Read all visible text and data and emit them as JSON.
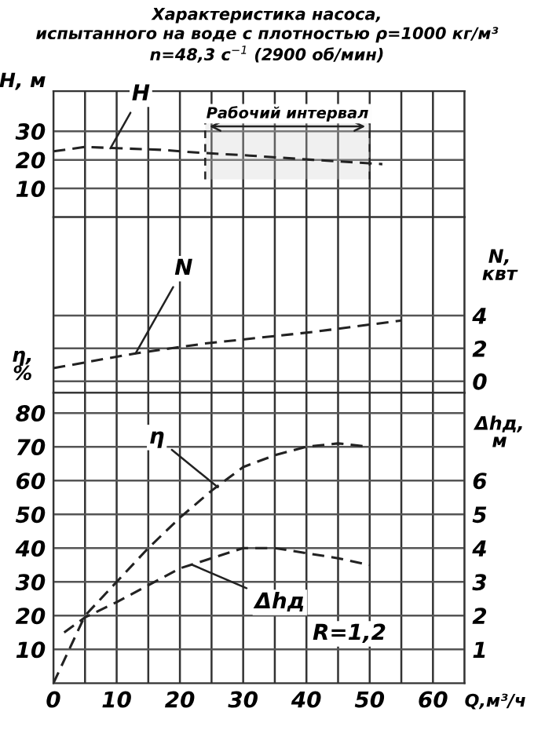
{
  "chart_data": [
    {
      "type": "line",
      "title": "Характеристика насоса,",
      "subtitle": "испытанного на воде с плотностью ρ=1000 кг/м³\nn=48,3 с$^{−1}$ (2900 об/мин)",
      "ylabel": "H, м",
      "xlim": [
        0,
        65
      ],
      "xticks": [
        0,
        {
          "value": 5,
          "label": null
        },
        10,
        {
          "value": 15,
          "label": null
        },
        20,
        {
          "value": 25,
          "label": null
        },
        30,
        {
          "value": 35,
          "label": null
        },
        40,
        {
          "value": 45,
          "label": null
        },
        50,
        {
          "value": 55,
          "label": null
        },
        60,
        {
          "value": 65,
          "label": null
        }
      ],
      "ylim": [
        0,
        44
      ],
      "yticks": [
        10,
        20,
        30
      ],
      "tick_labels": "y",
      "grid": true,
      "line_style": "dashed",
      "series": [
        {
          "color": "#222222",
          "x": [
            0,
            5,
            17,
            23,
            31,
            41,
            52
          ],
          "values": [
            23,
            24.5,
            23.5,
            22.5,
            21.5,
            20,
            18.5
          ]
        }
      ],
      "bands": [
        {
          "axis": "x",
          "from": 24,
          "to": 50,
          "label": "Рабочий интервал"
        }
      ],
      "annotations": [
        {
          "text": "H",
          "x": 9,
          "y": 24
        }
      ]
    },
    {
      "type": "line",
      "ylabel": "N,\nквт",
      "xlim": [
        0,
        65
      ],
      "xticks": [
        0,
        {
          "value": 5,
          "label": null
        },
        10,
        {
          "value": 15,
          "label": null
        },
        20,
        {
          "value": 25,
          "label": null
        },
        30,
        {
          "value": 35,
          "label": null
        },
        40,
        {
          "value": 45,
          "label": null
        },
        50,
        {
          "value": 55,
          "label": null
        },
        60,
        {
          "value": 65,
          "label": null
        }
      ],
      "ylim": [
        -0.7,
        10
      ],
      "yticks": [
        0,
        2,
        4
      ],
      "tick_labels": "y",
      "grid": true,
      "line_style": "dashed",
      "series": [
        {
          "color": "#222222",
          "x": [
            0,
            13,
            24,
            41,
            55
          ],
          "values": [
            0.8,
            1.7,
            2.3,
            3.0,
            3.7
          ]
        }
      ],
      "annotations": [
        {
          "text": "N",
          "x": 13,
          "y": 1.7
        }
      ]
    },
    {
      "type": "line",
      "xlabel": "Q,м³/ч",
      "ylabel": "η,\n%",
      "y2label": "Δhд,\nм",
      "xlim": [
        0,
        65
      ],
      "xticks": [
        0,
        {
          "value": 5,
          "label": null
        },
        10,
        {
          "value": 15,
          "label": null
        },
        20,
        {
          "value": 25,
          "label": null
        },
        30,
        {
          "value": 35,
          "label": null
        },
        40,
        {
          "value": 45,
          "label": null
        },
        50,
        {
          "value": 55,
          "label": null
        },
        60,
        {
          "value": 65,
          "label": null
        }
      ],
      "ylim": [
        0,
        86
      ],
      "yticks": [
        10,
        20,
        30,
        40,
        50,
        60,
        70,
        80
      ],
      "y2lim": [
        0,
        8.6
      ],
      "y2ticks": [
        1,
        2,
        3,
        4,
        5,
        6
      ],
      "grid": true,
      "line_style": "dashed",
      "series": [
        {
          "color": "#222222",
          "x": [
            0,
            5,
            10,
            15,
            20,
            25,
            30,
            35,
            40,
            45,
            50
          ],
          "values": [
            0,
            20,
            30,
            40,
            49,
            57,
            64,
            67.5,
            70,
            71,
            70
          ]
        },
        {
          "color": "#222222",
          "axis": "y2",
          "x": [
            1.7,
            5,
            10,
            15,
            20,
            25,
            30,
            35,
            40,
            45,
            50
          ],
          "values": [
            1.5,
            1.95,
            2.4,
            2.9,
            3.4,
            3.7,
            4.0,
            4.0,
            3.85,
            3.7,
            3.5
          ]
        }
      ],
      "annotations": [
        {
          "text": "η",
          "x": 26,
          "y": 58
        },
        {
          "text": "Δhд",
          "x": 22,
          "y": 35
        },
        "R=1,2"
      ]
    }
  ]
}
